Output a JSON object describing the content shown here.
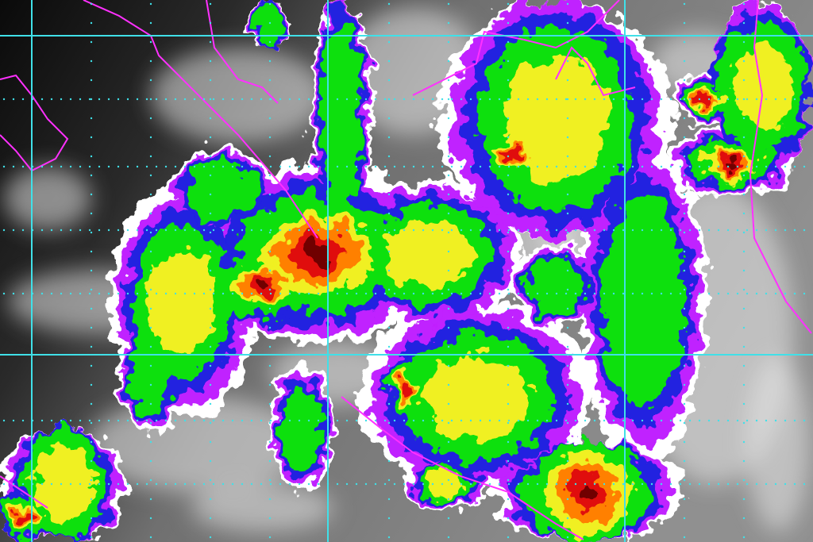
{
  "image": {
    "kind": "enhanced infrared satellite image",
    "colors": {
      "background_dark": "#101010",
      "cloud_gray": "#8a8a8a",
      "cloud_white": "#e8e8e8",
      "enhancement_levels": [
        "#ffffff",
        "#c020ff",
        "#2020e0",
        "#10e010",
        "#f0f020",
        "#ff8000",
        "#e01010",
        "#700000"
      ],
      "grid_line": "#40e0e8",
      "coastline": "#ff30ff"
    }
  }
}
